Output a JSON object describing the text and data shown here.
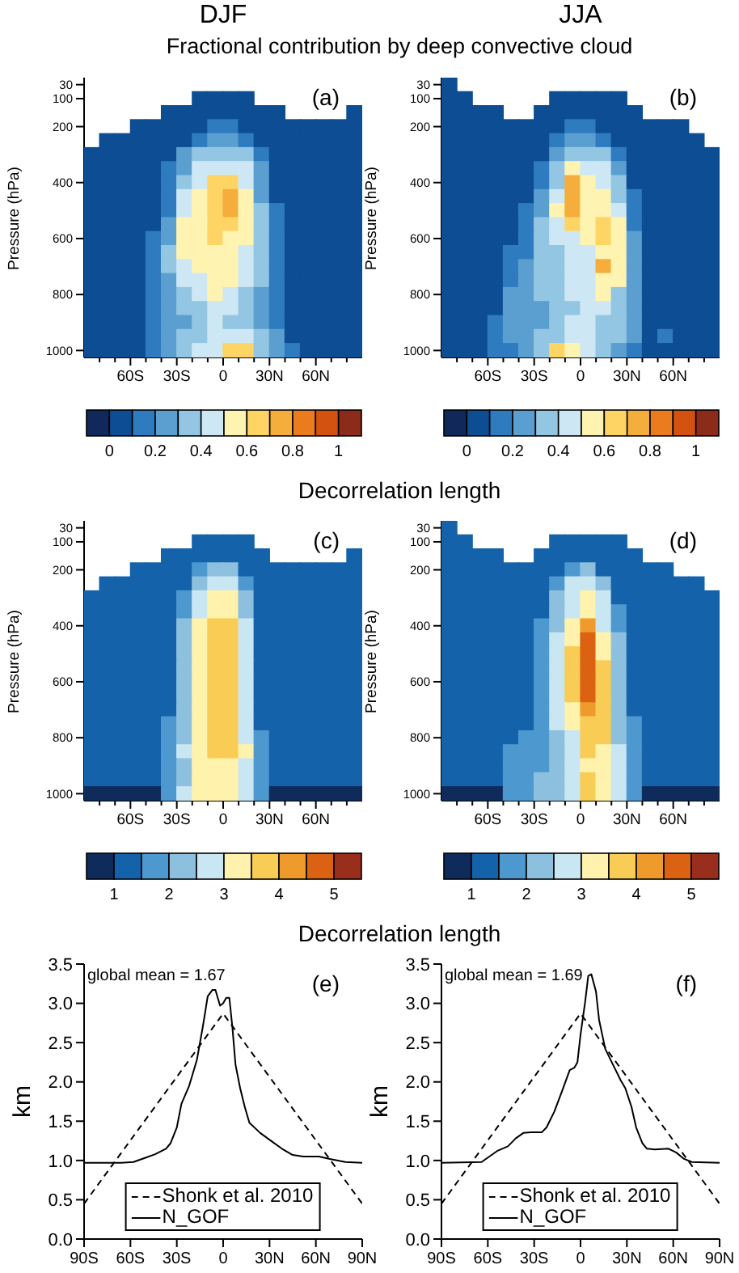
{
  "chart_data": [
    {
      "type": "heatmap",
      "title": "DJF",
      "subtitle": "Fractional contribution by deep convective cloud",
      "ylabel": "Pressure (hPa)",
      "xlim": [
        -90,
        90
      ],
      "xticks": [
        {
          "value": -80,
          "label": null
        },
        {
          "value": -70,
          "label": null
        },
        {
          "value": -60,
          "label": "60S"
        },
        {
          "value": -50,
          "label": null
        },
        {
          "value": -40,
          "label": null
        },
        {
          "value": -30,
          "label": "30S"
        },
        {
          "value": -20,
          "label": null
        },
        {
          "value": -10,
          "label": null
        },
        {
          "value": 0,
          "label": "0"
        },
        {
          "value": 10,
          "label": null
        },
        {
          "value": 20,
          "label": null
        },
        {
          "value": 30,
          "label": "30N"
        },
        {
          "value": 40,
          "label": null
        },
        {
          "value": 50,
          "label": null
        },
        {
          "value": 60,
          "label": "60N"
        },
        {
          "value": 70,
          "label": null
        },
        {
          "value": 80,
          "label": null
        }
      ],
      "y_categories": [
        "30",
        "100",
        null,
        "200",
        null,
        null,
        null,
        "400",
        null,
        null,
        null,
        "600",
        null,
        null,
        null,
        "800",
        null,
        null,
        null,
        "1000"
      ],
      "clim": [
        -0.1,
        1.1
      ],
      "cticks": [
        0,
        0.2,
        0.4,
        0.6,
        0.8,
        1
      ],
      "annotations": [
        "(a)"
      ],
      "cells": [
        [
          null,
          null,
          null,
          null,
          null,
          null,
          null,
          null,
          null,
          null,
          null,
          null,
          null,
          null,
          null,
          null,
          null,
          null
        ],
        [
          null,
          null,
          null,
          null,
          null,
          null,
          null,
          0.05,
          0.05,
          0.05,
          0.05,
          null,
          null,
          null,
          null,
          null,
          null,
          null
        ],
        [
          null,
          null,
          null,
          null,
          null,
          0.05,
          0.05,
          0.05,
          0.05,
          0.05,
          0.05,
          0.05,
          0.05,
          null,
          null,
          null,
          null,
          0.05
        ],
        [
          null,
          null,
          null,
          0.05,
          0.05,
          0.05,
          0.05,
          0.05,
          0.15,
          0.15,
          0.05,
          0.05,
          0.05,
          0.05,
          0.05,
          0.05,
          0.05,
          0.05
        ],
        [
          null,
          0.05,
          0.05,
          0.05,
          0.05,
          0.05,
          0.05,
          0.15,
          0.25,
          0.25,
          0.15,
          0.05,
          0.05,
          0.05,
          0.05,
          0.05,
          0.05,
          0.05
        ],
        [
          0.05,
          0.05,
          0.05,
          0.05,
          0.05,
          0.05,
          0.25,
          0.35,
          0.35,
          0.35,
          0.35,
          0.15,
          0.05,
          0.05,
          0.05,
          0.05,
          0.05,
          0.05
        ],
        [
          0.05,
          0.05,
          0.05,
          0.05,
          0.05,
          0.15,
          0.25,
          0.45,
          0.45,
          0.45,
          0.45,
          0.25,
          0.05,
          0.05,
          0.05,
          0.05,
          0.05,
          0.05
        ],
        [
          0.05,
          0.05,
          0.05,
          0.05,
          0.05,
          0.15,
          0.35,
          0.45,
          0.65,
          0.65,
          0.45,
          0.25,
          0.05,
          0.05,
          0.05,
          0.05,
          0.05,
          0.05
        ],
        [
          0.05,
          0.05,
          0.05,
          0.05,
          0.05,
          0.15,
          0.45,
          0.55,
          0.65,
          0.75,
          0.55,
          0.25,
          0.05,
          0.05,
          0.05,
          0.05,
          0.05,
          0.05
        ],
        [
          0.05,
          0.05,
          0.05,
          0.05,
          0.05,
          0.15,
          0.45,
          0.55,
          0.65,
          0.75,
          0.55,
          0.35,
          0.15,
          0.05,
          0.05,
          0.05,
          0.05,
          0.05
        ],
        [
          0.05,
          0.05,
          0.05,
          0.05,
          0.05,
          0.25,
          0.55,
          0.55,
          0.65,
          0.65,
          0.55,
          0.35,
          0.15,
          0.05,
          0.05,
          0.05,
          0.05,
          0.05
        ],
        [
          0.05,
          0.05,
          0.05,
          0.05,
          0.15,
          0.25,
          0.55,
          0.55,
          0.65,
          0.55,
          0.55,
          0.35,
          0.15,
          0.05,
          0.05,
          0.05,
          0.05,
          0.05
        ],
        [
          0.05,
          0.05,
          0.05,
          0.05,
          0.15,
          0.35,
          0.55,
          0.55,
          0.55,
          0.55,
          0.45,
          0.35,
          0.15,
          0.05,
          0.05,
          0.05,
          0.05,
          0.05
        ],
        [
          0.05,
          0.05,
          0.05,
          0.05,
          0.15,
          0.35,
          0.45,
          0.55,
          0.55,
          0.55,
          0.45,
          0.35,
          0.15,
          0.05,
          0.05,
          0.05,
          0.05,
          0.05
        ],
        [
          0.05,
          0.05,
          0.05,
          0.05,
          0.15,
          0.25,
          0.45,
          0.45,
          0.55,
          0.55,
          0.45,
          0.35,
          0.15,
          0.05,
          0.05,
          0.05,
          0.05,
          0.05
        ],
        [
          0.05,
          0.05,
          0.05,
          0.05,
          0.15,
          0.25,
          0.35,
          0.45,
          0.55,
          0.45,
          0.35,
          0.25,
          0.15,
          0.05,
          0.05,
          0.05,
          0.05,
          0.05
        ],
        [
          0.05,
          0.05,
          0.05,
          0.05,
          0.15,
          0.25,
          0.35,
          0.35,
          0.45,
          0.45,
          0.35,
          0.25,
          0.15,
          0.05,
          0.05,
          0.05,
          0.05,
          0.05
        ],
        [
          0.05,
          0.05,
          0.05,
          0.05,
          0.15,
          0.25,
          0.25,
          0.35,
          0.45,
          0.35,
          0.35,
          0.25,
          0.15,
          0.05,
          0.05,
          0.05,
          0.05,
          0.05
        ],
        [
          0.05,
          0.05,
          0.05,
          0.05,
          0.15,
          0.25,
          0.35,
          0.35,
          0.45,
          0.45,
          0.45,
          0.35,
          0.25,
          0.05,
          0.05,
          0.05,
          0.05,
          0.05
        ],
        [
          0.05,
          0.05,
          0.05,
          0.05,
          0.15,
          0.25,
          0.35,
          0.45,
          0.45,
          0.65,
          0.65,
          0.35,
          0.25,
          0.15,
          0.05,
          0.05,
          0.05,
          0.05
        ]
      ]
    },
    {
      "type": "heatmap",
      "title": "JJA",
      "ylabel": "Pressure (hPa)",
      "xlim": [
        -90,
        90
      ],
      "xticks": [
        {
          "value": -80,
          "label": null
        },
        {
          "value": -70,
          "label": null
        },
        {
          "value": -60,
          "label": "60S"
        },
        {
          "value": -50,
          "label": null
        },
        {
          "value": -40,
          "label": null
        },
        {
          "value": -30,
          "label": "30S"
        },
        {
          "value": -20,
          "label": null
        },
        {
          "value": -10,
          "label": null
        },
        {
          "value": 0,
          "label": "0"
        },
        {
          "value": 10,
          "label": null
        },
        {
          "value": 20,
          "label": null
        },
        {
          "value": 30,
          "label": "30N"
        },
        {
          "value": 40,
          "label": null
        },
        {
          "value": 50,
          "label": null
        },
        {
          "value": 60,
          "label": "60N"
        },
        {
          "value": 70,
          "label": null
        },
        {
          "value": 80,
          "label": null
        }
      ],
      "y_categories": [
        "30",
        "100",
        null,
        "200",
        null,
        null,
        null,
        "400",
        null,
        null,
        null,
        "600",
        null,
        null,
        null,
        "800",
        null,
        null,
        null,
        "1000"
      ],
      "clim": [
        -0.1,
        1.1
      ],
      "cticks": [
        0,
        0.2,
        0.4,
        0.6,
        0.8,
        1
      ],
      "annotations": [
        "(b)"
      ],
      "cells": [
        [
          0.05,
          null,
          null,
          null,
          null,
          null,
          null,
          null,
          null,
          null,
          null,
          null,
          null,
          null,
          null,
          null,
          null,
          null
        ],
        [
          0.05,
          0.05,
          null,
          null,
          null,
          null,
          null,
          0.05,
          0.05,
          0.05,
          0.05,
          0.05,
          null,
          null,
          null,
          null,
          null,
          null
        ],
        [
          0.05,
          0.05,
          0.05,
          0.05,
          null,
          null,
          0.05,
          0.05,
          0.05,
          0.05,
          0.05,
          0.05,
          0.05,
          null,
          null,
          null,
          null,
          null
        ],
        [
          0.05,
          0.05,
          0.05,
          0.05,
          0.05,
          0.05,
          0.05,
          0.05,
          0.15,
          0.15,
          0.05,
          0.05,
          0.05,
          0.05,
          0.05,
          0.05,
          null,
          null
        ],
        [
          0.05,
          0.05,
          0.05,
          0.05,
          0.05,
          0.05,
          0.05,
          0.15,
          0.25,
          0.25,
          0.15,
          0.05,
          0.05,
          0.05,
          0.05,
          0.05,
          0.05,
          null
        ],
        [
          0.05,
          0.05,
          0.05,
          0.05,
          0.05,
          0.05,
          0.05,
          0.25,
          0.35,
          0.35,
          0.35,
          0.15,
          0.05,
          0.05,
          0.05,
          0.05,
          0.05,
          0.05
        ],
        [
          0.05,
          0.05,
          0.05,
          0.05,
          0.05,
          0.05,
          0.15,
          0.35,
          0.55,
          0.45,
          0.45,
          0.25,
          0.05,
          0.05,
          0.05,
          0.05,
          0.05,
          0.05
        ],
        [
          0.05,
          0.05,
          0.05,
          0.05,
          0.05,
          0.05,
          0.15,
          0.35,
          0.75,
          0.55,
          0.45,
          0.35,
          0.05,
          0.05,
          0.05,
          0.05,
          0.05,
          0.05
        ],
        [
          0.05,
          0.05,
          0.05,
          0.05,
          0.05,
          0.05,
          0.25,
          0.45,
          0.75,
          0.55,
          0.55,
          0.35,
          0.15,
          0.05,
          0.05,
          0.05,
          0.05,
          0.05
        ],
        [
          0.05,
          0.05,
          0.05,
          0.05,
          0.05,
          0.15,
          0.25,
          0.55,
          0.75,
          0.55,
          0.55,
          0.45,
          0.15,
          0.05,
          0.05,
          0.05,
          0.05,
          0.05
        ],
        [
          0.05,
          0.05,
          0.05,
          0.05,
          0.05,
          0.15,
          0.35,
          0.45,
          0.65,
          0.55,
          0.65,
          0.55,
          0.15,
          0.05,
          0.05,
          0.05,
          0.05,
          0.05
        ],
        [
          0.05,
          0.05,
          0.05,
          0.05,
          0.05,
          0.15,
          0.35,
          0.45,
          0.45,
          0.55,
          0.65,
          0.55,
          0.25,
          0.05,
          0.05,
          0.05,
          0.05,
          0.05
        ],
        [
          0.05,
          0.05,
          0.05,
          0.05,
          0.15,
          0.15,
          0.35,
          0.35,
          0.45,
          0.45,
          0.55,
          0.55,
          0.25,
          0.05,
          0.05,
          0.05,
          0.05,
          0.05
        ],
        [
          0.05,
          0.05,
          0.05,
          0.05,
          0.15,
          0.25,
          0.35,
          0.35,
          0.45,
          0.45,
          0.75,
          0.55,
          0.25,
          0.05,
          0.05,
          0.05,
          0.05,
          0.05
        ],
        [
          0.05,
          0.05,
          0.05,
          0.05,
          0.15,
          0.25,
          0.35,
          0.35,
          0.45,
          0.45,
          0.55,
          0.55,
          0.25,
          0.05,
          0.05,
          0.05,
          0.05,
          0.05
        ],
        [
          0.05,
          0.05,
          0.05,
          0.05,
          0.25,
          0.25,
          0.35,
          0.35,
          0.45,
          0.45,
          0.55,
          0.35,
          0.25,
          0.05,
          0.05,
          0.05,
          0.05,
          0.05
        ],
        [
          0.05,
          0.05,
          0.05,
          0.05,
          0.25,
          0.25,
          0.25,
          0.35,
          0.35,
          0.45,
          0.45,
          0.35,
          0.25,
          0.05,
          0.05,
          0.05,
          0.05,
          0.05
        ],
        [
          0.05,
          0.05,
          0.05,
          0.15,
          0.25,
          0.25,
          0.25,
          0.35,
          0.45,
          0.45,
          0.35,
          0.35,
          0.25,
          0.05,
          0.05,
          0.05,
          0.05,
          0.05
        ],
        [
          0.05,
          0.05,
          0.05,
          0.15,
          0.25,
          0.25,
          0.35,
          0.35,
          0.45,
          0.45,
          0.35,
          0.35,
          0.25,
          0.05,
          0.15,
          0.05,
          0.05,
          0.05
        ],
        [
          0.05,
          0.05,
          0.05,
          0.15,
          0.15,
          0.25,
          0.35,
          0.65,
          0.55,
          0.45,
          0.35,
          0.25,
          0.15,
          0.05,
          0.05,
          0.05,
          0.05,
          0.05
        ]
      ]
    },
    {
      "type": "heatmap",
      "title": "Decorrelation length",
      "ylabel": "Pressure (hPa)",
      "xlim": [
        -90,
        90
      ],
      "xticks": [
        {
          "value": -80,
          "label": null
        },
        {
          "value": -70,
          "label": null
        },
        {
          "value": -60,
          "label": "60S"
        },
        {
          "value": -50,
          "label": null
        },
        {
          "value": -40,
          "label": null
        },
        {
          "value": -30,
          "label": "30S"
        },
        {
          "value": -20,
          "label": null
        },
        {
          "value": -10,
          "label": null
        },
        {
          "value": 0,
          "label": "0"
        },
        {
          "value": 10,
          "label": null
        },
        {
          "value": 20,
          "label": null
        },
        {
          "value": 30,
          "label": "30N"
        },
        {
          "value": 40,
          "label": null
        },
        {
          "value": 50,
          "label": null
        },
        {
          "value": 60,
          "label": "60N"
        },
        {
          "value": 70,
          "label": null
        },
        {
          "value": 80,
          "label": null
        }
      ],
      "y_categories": [
        "30",
        "100",
        null,
        "200",
        null,
        null,
        null,
        "400",
        null,
        null,
        null,
        "600",
        null,
        null,
        null,
        "800",
        null,
        null,
        null,
        "1000"
      ],
      "clim": [
        0.5,
        5.5
      ],
      "cticks": [
        1,
        2,
        3,
        4,
        5
      ],
      "annotations": [
        "(c)"
      ],
      "cells": [
        [
          null,
          null,
          null,
          null,
          null,
          null,
          null,
          null,
          null,
          null,
          null,
          null,
          null,
          null,
          null,
          null,
          null,
          null
        ],
        [
          null,
          null,
          null,
          null,
          null,
          null,
          null,
          1.25,
          1.25,
          1.25,
          1.25,
          null,
          null,
          null,
          null,
          null,
          null,
          null
        ],
        [
          null,
          null,
          null,
          null,
          null,
          1.25,
          1.25,
          1.25,
          1.25,
          1.25,
          1.25,
          1.25,
          null,
          null,
          null,
          null,
          null,
          1.25
        ],
        [
          null,
          null,
          null,
          1.25,
          1.25,
          1.25,
          1.25,
          1.75,
          2.25,
          2.25,
          1.25,
          1.25,
          1.25,
          1.25,
          1.25,
          1.25,
          1.25,
          1.25
        ],
        [
          null,
          1.25,
          1.25,
          1.25,
          1.25,
          1.25,
          1.25,
          2.25,
          2.75,
          2.75,
          1.75,
          1.25,
          1.25,
          1.25,
          1.25,
          1.25,
          1.25,
          1.25
        ],
        [
          1.25,
          1.25,
          1.25,
          1.25,
          1.25,
          1.25,
          1.75,
          2.75,
          3.25,
          3.25,
          2.25,
          1.25,
          1.25,
          1.25,
          1.25,
          1.25,
          1.25,
          1.25
        ],
        [
          1.25,
          1.25,
          1.25,
          1.25,
          1.25,
          1.25,
          1.75,
          2.75,
          3.25,
          3.25,
          2.25,
          1.25,
          1.25,
          1.25,
          1.25,
          1.25,
          1.25,
          1.25
        ],
        [
          1.25,
          1.25,
          1.25,
          1.25,
          1.25,
          1.25,
          2.25,
          3.25,
          3.75,
          3.75,
          2.75,
          1.25,
          1.25,
          1.25,
          1.25,
          1.25,
          1.25,
          1.25
        ],
        [
          1.25,
          1.25,
          1.25,
          1.25,
          1.25,
          1.25,
          2.25,
          3.25,
          3.75,
          3.75,
          2.75,
          1.25,
          1.25,
          1.25,
          1.25,
          1.25,
          1.25,
          1.25
        ],
        [
          1.25,
          1.25,
          1.25,
          1.25,
          1.25,
          1.25,
          2.25,
          3.25,
          3.75,
          3.75,
          2.75,
          1.25,
          1.25,
          1.25,
          1.25,
          1.25,
          1.25,
          1.25
        ],
        [
          1.25,
          1.25,
          1.25,
          1.25,
          1.25,
          1.25,
          2.25,
          3.25,
          3.75,
          3.75,
          2.75,
          1.25,
          1.25,
          1.25,
          1.25,
          1.25,
          1.25,
          1.25
        ],
        [
          1.25,
          1.25,
          1.25,
          1.25,
          1.25,
          1.25,
          2.25,
          3.25,
          3.75,
          3.75,
          2.75,
          1.25,
          1.25,
          1.25,
          1.25,
          1.25,
          1.25,
          1.25
        ],
        [
          1.25,
          1.25,
          1.25,
          1.25,
          1.25,
          1.25,
          2.25,
          3.25,
          3.75,
          3.75,
          2.75,
          1.25,
          1.25,
          1.25,
          1.25,
          1.25,
          1.25,
          1.25
        ],
        [
          1.25,
          1.25,
          1.25,
          1.25,
          1.25,
          1.25,
          2.25,
          3.25,
          3.75,
          3.75,
          2.75,
          1.25,
          1.25,
          1.25,
          1.25,
          1.25,
          1.25,
          1.25
        ],
        [
          1.25,
          1.25,
          1.25,
          1.25,
          1.25,
          1.75,
          2.25,
          3.25,
          3.75,
          3.75,
          2.75,
          1.25,
          1.25,
          1.25,
          1.25,
          1.25,
          1.25,
          1.25
        ],
        [
          1.25,
          1.25,
          1.25,
          1.25,
          1.25,
          1.75,
          2.25,
          3.25,
          3.75,
          3.75,
          2.75,
          1.75,
          1.25,
          1.25,
          1.25,
          1.25,
          1.25,
          1.25
        ],
        [
          1.25,
          1.25,
          1.25,
          1.25,
          1.25,
          1.75,
          2.75,
          3.25,
          3.75,
          3.75,
          3.25,
          1.75,
          1.25,
          1.25,
          1.25,
          1.25,
          1.25,
          1.25
        ],
        [
          1.25,
          1.25,
          1.25,
          1.25,
          1.25,
          1.75,
          2.25,
          3.25,
          3.25,
          3.25,
          2.75,
          1.75,
          1.25,
          1.25,
          1.25,
          1.25,
          1.25,
          1.25
        ],
        [
          1.25,
          1.25,
          1.25,
          1.25,
          1.25,
          1.75,
          2.25,
          3.25,
          3.25,
          3.25,
          2.75,
          1.75,
          1.25,
          1.25,
          1.25,
          1.25,
          1.25,
          1.25
        ],
        [
          0.75,
          0.75,
          0.75,
          0.75,
          0.75,
          1.75,
          2.75,
          3.25,
          3.25,
          3.25,
          2.75,
          1.75,
          0.75,
          0.75,
          0.75,
          0.75,
          0.75,
          0.75
        ]
      ]
    },
    {
      "type": "heatmap",
      "ylabel": "Pressure (hPa)",
      "xlim": [
        -90,
        90
      ],
      "xticks": [
        {
          "value": -80,
          "label": null
        },
        {
          "value": -70,
          "label": null
        },
        {
          "value": -60,
          "label": "60S"
        },
        {
          "value": -50,
          "label": null
        },
        {
          "value": -40,
          "label": null
        },
        {
          "value": -30,
          "label": "30S"
        },
        {
          "value": -20,
          "label": null
        },
        {
          "value": -10,
          "label": null
        },
        {
          "value": 0,
          "label": "0"
        },
        {
          "value": 10,
          "label": null
        },
        {
          "value": 20,
          "label": null
        },
        {
          "value": 30,
          "label": "30N"
        },
        {
          "value": 40,
          "label": null
        },
        {
          "value": 50,
          "label": null
        },
        {
          "value": 60,
          "label": "60N"
        },
        {
          "value": 70,
          "label": null
        },
        {
          "value": 80,
          "label": null
        }
      ],
      "y_categories": [
        "30",
        "100",
        null,
        "200",
        null,
        null,
        null,
        "400",
        null,
        null,
        null,
        "600",
        null,
        null,
        null,
        "800",
        null,
        null,
        null,
        "1000"
      ],
      "clim": [
        0.5,
        5.5
      ],
      "cticks": [
        1,
        2,
        3,
        4,
        5
      ],
      "annotations": [
        "(d)"
      ],
      "cells": [
        [
          1.25,
          null,
          null,
          null,
          null,
          null,
          null,
          null,
          null,
          null,
          null,
          null,
          null,
          null,
          null,
          null,
          null,
          null
        ],
        [
          1.25,
          1.25,
          null,
          null,
          null,
          null,
          null,
          1.25,
          1.25,
          1.25,
          1.25,
          1.25,
          null,
          null,
          null,
          null,
          null,
          null
        ],
        [
          1.25,
          1.25,
          1.25,
          1.25,
          null,
          null,
          1.25,
          1.25,
          1.25,
          1.25,
          1.25,
          1.25,
          1.25,
          null,
          null,
          null,
          null,
          null
        ],
        [
          1.25,
          1.25,
          1.25,
          1.25,
          1.25,
          1.25,
          1.25,
          1.25,
          1.75,
          2.25,
          1.25,
          1.25,
          1.25,
          1.25,
          1.25,
          null,
          null,
          null
        ],
        [
          1.25,
          1.25,
          1.25,
          1.25,
          1.25,
          1.25,
          1.25,
          1.75,
          2.75,
          2.75,
          2.25,
          1.25,
          1.25,
          1.25,
          1.25,
          1.25,
          1.25,
          null
        ],
        [
          1.25,
          1.25,
          1.25,
          1.25,
          1.25,
          1.25,
          1.25,
          2.25,
          2.75,
          3.25,
          2.75,
          1.25,
          1.25,
          1.25,
          1.25,
          1.25,
          1.25,
          1.25
        ],
        [
          1.25,
          1.25,
          1.25,
          1.25,
          1.25,
          1.25,
          1.25,
          2.25,
          2.75,
          3.25,
          2.75,
          1.75,
          1.25,
          1.25,
          1.25,
          1.25,
          1.25,
          1.25
        ],
        [
          1.25,
          1.25,
          1.25,
          1.25,
          1.25,
          1.25,
          1.75,
          2.25,
          3.25,
          4.25,
          2.75,
          1.75,
          1.25,
          1.25,
          1.25,
          1.25,
          1.25,
          1.25
        ],
        [
          1.25,
          1.25,
          1.25,
          1.25,
          1.25,
          1.25,
          1.75,
          2.75,
          3.25,
          4.75,
          3.25,
          2.25,
          1.25,
          1.25,
          1.25,
          1.25,
          1.25,
          1.25
        ],
        [
          1.25,
          1.25,
          1.25,
          1.25,
          1.25,
          1.25,
          1.75,
          2.75,
          3.75,
          4.75,
          3.25,
          2.25,
          1.25,
          1.25,
          1.25,
          1.25,
          1.25,
          1.25
        ],
        [
          1.25,
          1.25,
          1.25,
          1.25,
          1.25,
          1.25,
          1.75,
          2.75,
          3.75,
          4.75,
          3.75,
          2.25,
          1.25,
          1.25,
          1.25,
          1.25,
          1.25,
          1.25
        ],
        [
          1.25,
          1.25,
          1.25,
          1.25,
          1.25,
          1.25,
          1.75,
          2.75,
          3.75,
          4.75,
          3.75,
          2.25,
          1.25,
          1.25,
          1.25,
          1.25,
          1.25,
          1.25
        ],
        [
          1.25,
          1.25,
          1.25,
          1.25,
          1.25,
          1.25,
          1.75,
          2.75,
          3.75,
          4.75,
          3.75,
          2.25,
          1.25,
          1.25,
          1.25,
          1.25,
          1.25,
          1.25
        ],
        [
          1.25,
          1.25,
          1.25,
          1.25,
          1.25,
          1.25,
          1.75,
          2.75,
          3.25,
          4.25,
          3.75,
          2.25,
          1.25,
          1.25,
          1.25,
          1.25,
          1.25,
          1.25
        ],
        [
          1.25,
          1.25,
          1.25,
          1.25,
          1.25,
          1.25,
          1.75,
          2.75,
          3.25,
          3.75,
          3.75,
          2.25,
          1.75,
          1.25,
          1.25,
          1.25,
          1.25,
          1.25
        ],
        [
          1.25,
          1.25,
          1.25,
          1.25,
          1.25,
          1.75,
          1.75,
          2.25,
          2.75,
          3.75,
          3.75,
          2.25,
          1.75,
          1.25,
          1.25,
          1.25,
          1.25,
          1.25
        ],
        [
          1.25,
          1.25,
          1.25,
          1.25,
          1.75,
          1.75,
          1.75,
          2.25,
          2.75,
          3.75,
          3.25,
          2.75,
          1.75,
          1.25,
          1.25,
          1.25,
          1.25,
          1.25
        ],
        [
          1.25,
          1.25,
          1.25,
          1.25,
          1.75,
          1.75,
          1.75,
          2.25,
          2.75,
          3.25,
          3.25,
          2.75,
          1.75,
          1.25,
          1.25,
          1.25,
          1.25,
          1.25
        ],
        [
          1.25,
          1.25,
          1.25,
          1.25,
          1.75,
          1.75,
          2.25,
          2.25,
          2.75,
          3.75,
          3.25,
          2.75,
          1.75,
          1.25,
          1.25,
          1.25,
          1.25,
          1.25
        ],
        [
          0.75,
          0.75,
          0.75,
          0.75,
          1.75,
          1.75,
          2.25,
          2.25,
          2.75,
          3.75,
          3.25,
          2.75,
          1.75,
          0.75,
          0.75,
          0.75,
          0.75,
          0.75
        ]
      ]
    },
    {
      "type": "line",
      "title": "Decorrelation length",
      "ylabel": "km",
      "xlim": [
        -90,
        90
      ],
      "xticks": [
        {
          "value": -90,
          "label": "90S"
        },
        {
          "value": -60,
          "label": "60S"
        },
        {
          "value": -30,
          "label": "30S"
        },
        {
          "value": 0,
          "label": "0"
        },
        {
          "value": 30,
          "label": "30N"
        },
        {
          "value": 60,
          "label": "60N"
        },
        {
          "value": 90,
          "label": "90N"
        }
      ],
      "ylim": [
        0,
        3.5
      ],
      "yticks": [
        {
          "value": 0,
          "label": "0.0"
        },
        0.5,
        {
          "value": 1,
          "label": "1.0"
        },
        1.5,
        {
          "value": 2,
          "label": "2.0"
        },
        2.5,
        {
          "value": 3,
          "label": "3.0"
        },
        3.5
      ],
      "legend": "bottom",
      "annotations": [
        "global mean = 1.67",
        "(e)"
      ],
      "series": [
        {
          "name": "Shonk et al. 2010",
          "color": "#000000",
          "line_style": "dashed",
          "x": [
            -90,
            0,
            90
          ],
          "values": [
            0.45,
            2.87,
            0.45
          ]
        },
        {
          "name": "N_GOF",
          "color": "#000000",
          "line_style": "solid",
          "x": [
            -90,
            -66,
            -58,
            -51,
            -44,
            -37,
            -34,
            -30,
            -27,
            -22,
            -17,
            -13,
            -10,
            -7,
            -5,
            -2,
            0,
            2,
            4,
            6,
            8,
            11,
            14,
            17,
            24,
            31,
            38,
            45,
            52,
            62,
            69,
            79,
            90
          ],
          "values": [
            0.97,
            0.97,
            0.98,
            1.03,
            1.08,
            1.15,
            1.22,
            1.42,
            1.72,
            1.95,
            2.28,
            2.72,
            3.09,
            3.17,
            3.17,
            2.97,
            3.0,
            3.07,
            3.07,
            2.69,
            2.22,
            1.92,
            1.68,
            1.48,
            1.35,
            1.25,
            1.15,
            1.07,
            1.05,
            1.05,
            1.02,
            0.98,
            0.97
          ]
        }
      ]
    },
    {
      "type": "line",
      "ylabel": "km",
      "xlim": [
        -90,
        90
      ],
      "xticks": [
        {
          "value": -90,
          "label": "90S"
        },
        {
          "value": -60,
          "label": "60S"
        },
        {
          "value": -30,
          "label": "30S"
        },
        {
          "value": 0,
          "label": "0"
        },
        {
          "value": 30,
          "label": "30N"
        },
        {
          "value": 60,
          "label": "60N"
        },
        {
          "value": 90,
          "label": "90N"
        }
      ],
      "ylim": [
        0,
        3.5
      ],
      "yticks": [
        {
          "value": 0,
          "label": "0.0"
        },
        0.5,
        {
          "value": 1,
          "label": "1.0"
        },
        1.5,
        {
          "value": 2,
          "label": "2.0"
        },
        2.5,
        {
          "value": 3,
          "label": "3.0"
        },
        3.5
      ],
      "legend": "bottom",
      "annotations": [
        "global mean = 1.69",
        "(f)"
      ],
      "series": [
        {
          "name": "Shonk et al. 2010",
          "color": "#000000",
          "line_style": "dashed",
          "x": [
            -90,
            0,
            90
          ],
          "values": [
            0.45,
            2.87,
            0.45
          ]
        },
        {
          "name": "N_GOF",
          "color": "#000000",
          "line_style": "solid",
          "x": [
            -90,
            -64,
            -59,
            -54,
            -47,
            -42,
            -37,
            -32,
            -25,
            -22,
            -17,
            -12,
            -7,
            -4,
            -2,
            0,
            3,
            5,
            7,
            10,
            12,
            16,
            21,
            26,
            29,
            33,
            36,
            40,
            43,
            48,
            57,
            62,
            67,
            72,
            90
          ],
          "values": [
            0.97,
            0.98,
            1.05,
            1.12,
            1.18,
            1.28,
            1.35,
            1.36,
            1.36,
            1.42,
            1.62,
            1.88,
            2.15,
            2.18,
            2.25,
            2.6,
            3.02,
            3.35,
            3.37,
            3.15,
            2.79,
            2.42,
            2.22,
            2.02,
            1.92,
            1.68,
            1.42,
            1.22,
            1.15,
            1.14,
            1.15,
            1.1,
            1.02,
            0.98,
            0.97
          ]
        }
      ]
    }
  ]
}
